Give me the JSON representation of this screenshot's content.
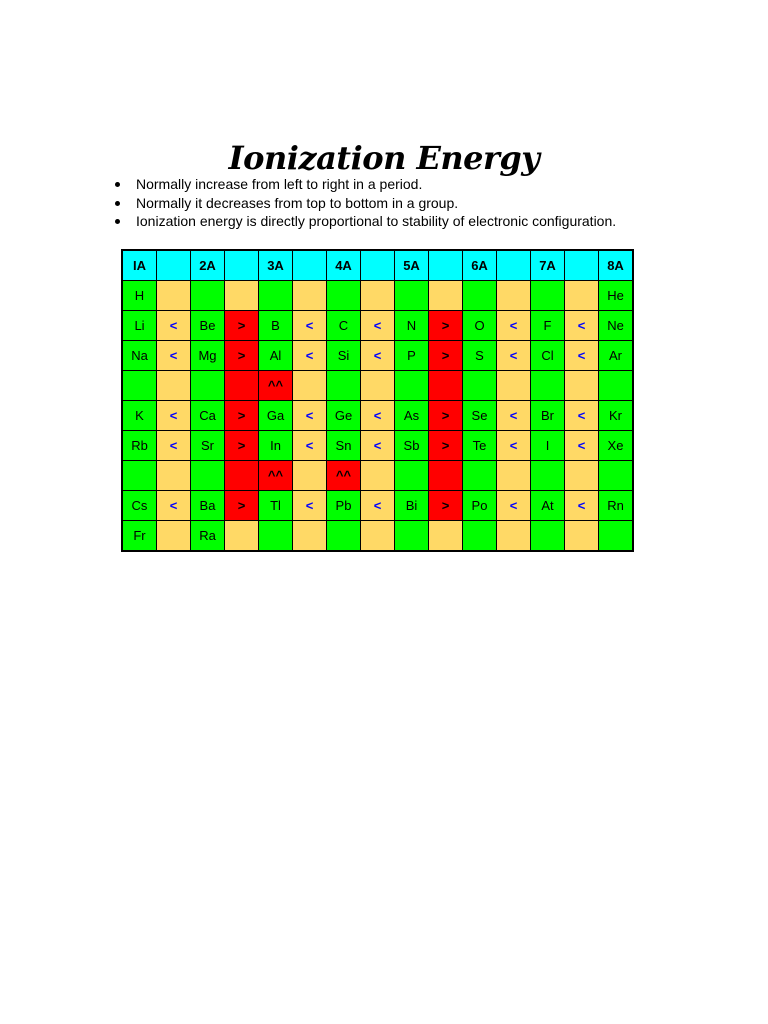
{
  "title": "Ionization Energy",
  "bullets": [
    "Normally increase from left to right in a period.",
    "Normally it decreases from top to bottom in a group.",
    "Ionization energy is directly proportional to stability of electronic configuration."
  ],
  "colors": {
    "c": "#00ffff",
    "g": "#00ff00",
    "y": "#ffd966",
    "r": "#ff0000",
    "less_than_symbol": "#0000ff"
  },
  "table": {
    "rows": [
      [
        [
          "IA",
          "c"
        ],
        [
          "",
          "c"
        ],
        [
          "2A",
          "c"
        ],
        [
          "",
          "c"
        ],
        [
          "3A",
          "c"
        ],
        [
          "",
          "c"
        ],
        [
          "4A",
          "c"
        ],
        [
          "",
          "c"
        ],
        [
          "5A",
          "c"
        ],
        [
          "",
          "c"
        ],
        [
          "6A",
          "c"
        ],
        [
          "",
          "c"
        ],
        [
          "7A",
          "c"
        ],
        [
          "",
          "c"
        ],
        [
          "8A",
          "c"
        ]
      ],
      [
        [
          "H",
          "g"
        ],
        [
          "",
          "y"
        ],
        [
          "",
          "g"
        ],
        [
          "",
          "y"
        ],
        [
          "",
          "g"
        ],
        [
          "",
          "y"
        ],
        [
          "",
          "g"
        ],
        [
          "",
          "y"
        ],
        [
          "",
          "g"
        ],
        [
          "",
          "y"
        ],
        [
          "",
          "g"
        ],
        [
          "",
          "y"
        ],
        [
          "",
          "g"
        ],
        [
          "",
          "y"
        ],
        [
          "He",
          "g"
        ]
      ],
      [
        [
          "Li",
          "g"
        ],
        [
          "<",
          "y"
        ],
        [
          "Be",
          "g"
        ],
        [
          ">",
          "r"
        ],
        [
          "B",
          "g"
        ],
        [
          "<",
          "y"
        ],
        [
          "C",
          "g"
        ],
        [
          "<",
          "y"
        ],
        [
          "N",
          "g"
        ],
        [
          ">",
          "r"
        ],
        [
          "O",
          "g"
        ],
        [
          "<",
          "y"
        ],
        [
          "F",
          "g"
        ],
        [
          "<",
          "y"
        ],
        [
          "Ne",
          "g"
        ]
      ],
      [
        [
          "Na",
          "g"
        ],
        [
          "<",
          "y"
        ],
        [
          "Mg",
          "g"
        ],
        [
          ">",
          "r"
        ],
        [
          "Al",
          "g"
        ],
        [
          "<",
          "y"
        ],
        [
          "Si",
          "g"
        ],
        [
          "<",
          "y"
        ],
        [
          "P",
          "g"
        ],
        [
          ">",
          "r"
        ],
        [
          "S",
          "g"
        ],
        [
          "<",
          "y"
        ],
        [
          "Cl",
          "g"
        ],
        [
          "<",
          "y"
        ],
        [
          "Ar",
          "g"
        ]
      ],
      [
        [
          "",
          "g"
        ],
        [
          "",
          "y"
        ],
        [
          "",
          "g"
        ],
        [
          "",
          "r"
        ],
        [
          "^^",
          "r"
        ],
        [
          "",
          "y"
        ],
        [
          "",
          "g"
        ],
        [
          "",
          "y"
        ],
        [
          "",
          "g"
        ],
        [
          "",
          "r"
        ],
        [
          "",
          "g"
        ],
        [
          "",
          "y"
        ],
        [
          "",
          "g"
        ],
        [
          "",
          "y"
        ],
        [
          "",
          "g"
        ]
      ],
      [
        [
          "K",
          "g"
        ],
        [
          "<",
          "y"
        ],
        [
          "Ca",
          "g"
        ],
        [
          ">",
          "r"
        ],
        [
          "Ga",
          "g"
        ],
        [
          "<",
          "y"
        ],
        [
          "Ge",
          "g"
        ],
        [
          "<",
          "y"
        ],
        [
          "As",
          "g"
        ],
        [
          ">",
          "r"
        ],
        [
          "Se",
          "g"
        ],
        [
          "<",
          "y"
        ],
        [
          "Br",
          "g"
        ],
        [
          "<",
          "y"
        ],
        [
          "Kr",
          "g"
        ]
      ],
      [
        [
          "Rb",
          "g"
        ],
        [
          "<",
          "y"
        ],
        [
          "Sr",
          "g"
        ],
        [
          ">",
          "r"
        ],
        [
          "In",
          "g"
        ],
        [
          "<",
          "y"
        ],
        [
          "Sn",
          "g"
        ],
        [
          "<",
          "y"
        ],
        [
          "Sb",
          "g"
        ],
        [
          ">",
          "r"
        ],
        [
          "Te",
          "g"
        ],
        [
          "<",
          "y"
        ],
        [
          "I",
          "g"
        ],
        [
          "<",
          "y"
        ],
        [
          "Xe",
          "g"
        ]
      ],
      [
        [
          "",
          "g"
        ],
        [
          "",
          "y"
        ],
        [
          "",
          "g"
        ],
        [
          "",
          "r"
        ],
        [
          "^^",
          "r"
        ],
        [
          "",
          "y"
        ],
        [
          "^^",
          "r"
        ],
        [
          "",
          "y"
        ],
        [
          "",
          "g"
        ],
        [
          "",
          "r"
        ],
        [
          "",
          "g"
        ],
        [
          "",
          "y"
        ],
        [
          "",
          "g"
        ],
        [
          "",
          "y"
        ],
        [
          "",
          "g"
        ]
      ],
      [
        [
          "Cs",
          "g"
        ],
        [
          "<",
          "y"
        ],
        [
          "Ba",
          "g"
        ],
        [
          ">",
          "r"
        ],
        [
          "Tl",
          "g"
        ],
        [
          "<",
          "y"
        ],
        [
          "Pb",
          "g"
        ],
        [
          "<",
          "y"
        ],
        [
          "Bi",
          "g"
        ],
        [
          ">",
          "r"
        ],
        [
          "Po",
          "g"
        ],
        [
          "<",
          "y"
        ],
        [
          "At",
          "g"
        ],
        [
          "<",
          "y"
        ],
        [
          "Rn",
          "g"
        ]
      ],
      [
        [
          "Fr",
          "g"
        ],
        [
          "",
          "y"
        ],
        [
          "Ra",
          "g"
        ],
        [
          "",
          "y"
        ],
        [
          "",
          "g"
        ],
        [
          "",
          "y"
        ],
        [
          "",
          "g"
        ],
        [
          "",
          "y"
        ],
        [
          "",
          "g"
        ],
        [
          "",
          "y"
        ],
        [
          "",
          "g"
        ],
        [
          "",
          "y"
        ],
        [
          "",
          "g"
        ],
        [
          "",
          "y"
        ],
        [
          "",
          "g"
        ]
      ]
    ]
  }
}
